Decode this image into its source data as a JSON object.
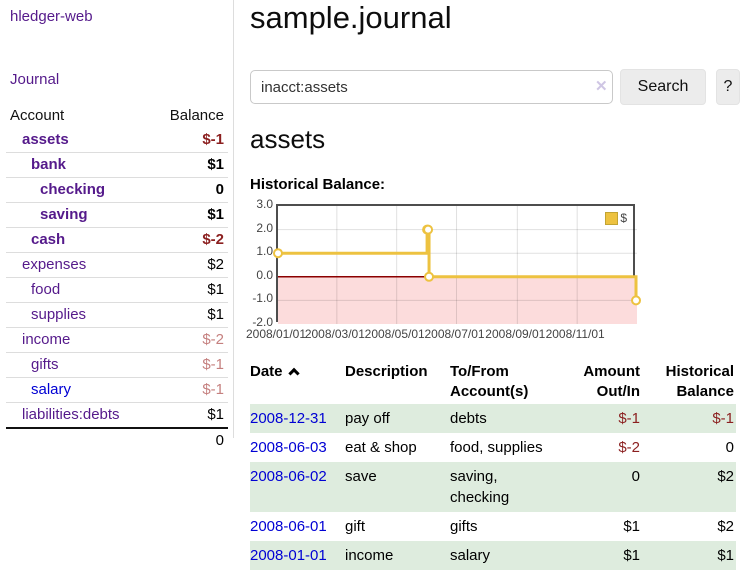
{
  "sidebar": {
    "brand": "hledger-web",
    "journal_link": "Journal",
    "table": {
      "account_header": "Account",
      "balance_header": "Balance",
      "accounts": [
        {
          "name": "assets",
          "level": 1,
          "bold": true,
          "link": "purple",
          "balance": "$-1",
          "balance_style": "neg-strong"
        },
        {
          "name": "bank",
          "level": 2,
          "bold": true,
          "link": "purple",
          "balance": "$1",
          "balance_style": "pos-strong"
        },
        {
          "name": "checking",
          "level": 3,
          "bold": true,
          "link": "purple",
          "balance": "0",
          "balance_style": "pos-strong"
        },
        {
          "name": "saving",
          "level": 3,
          "bold": true,
          "link": "purple",
          "balance": "$1",
          "balance_style": "pos-strong"
        },
        {
          "name": "cash",
          "level": 2,
          "bold": true,
          "link": "purple",
          "balance": "$-2",
          "balance_style": "neg-strong"
        },
        {
          "name": "expenses",
          "level": 1,
          "bold": false,
          "link": "purple",
          "balance": "$2",
          "balance_style": "pos"
        },
        {
          "name": "food",
          "level": 2,
          "bold": false,
          "link": "purple",
          "balance": "$1",
          "balance_style": "pos"
        },
        {
          "name": "supplies",
          "level": 2,
          "bold": false,
          "link": "purple",
          "balance": "$1",
          "balance_style": "pos"
        },
        {
          "name": "income",
          "level": 1,
          "bold": false,
          "link": "purple",
          "balance": "$-2",
          "balance_style": "neg-faded"
        },
        {
          "name": "gifts",
          "level": 2,
          "bold": false,
          "link": "purple",
          "balance": "$-1",
          "balance_style": "neg-faded"
        },
        {
          "name": "salary",
          "level": 2,
          "bold": false,
          "link": "blue",
          "balance": "$-1",
          "balance_style": "neg-faded"
        },
        {
          "name": "liabilities:debts",
          "level": 1,
          "bold": false,
          "link": "purple",
          "balance": "$1",
          "balance_style": "pos"
        }
      ],
      "total": "0"
    }
  },
  "header": {
    "title": "sample.journal"
  },
  "search": {
    "value": "inacct:assets",
    "clear_label": "✕",
    "button_label": "Search",
    "help_label": "?"
  },
  "account_page": {
    "heading": "assets",
    "chart_label": "Historical Balance:"
  },
  "chart_data": {
    "type": "line",
    "step": true,
    "title": "Historical Balance:",
    "series": [
      {
        "name": "$",
        "color": "#edc240",
        "points": [
          [
            "2008-01-01",
            1
          ],
          [
            "2008-06-01",
            2
          ],
          [
            "2008-06-02",
            2
          ],
          [
            "2008-06-03",
            0
          ],
          [
            "2008-12-31",
            -1
          ]
        ]
      }
    ],
    "x_range": [
      "2008-01-01",
      "2009-01-01"
    ],
    "ylim": [
      -2,
      3
    ],
    "y_ticks": [
      "3.0",
      "2.0",
      "1.0",
      "0.0",
      "-1.0",
      "-2.0"
    ],
    "x_ticks": [
      "2008/01/01",
      "2008/03/01",
      "2008/05/01",
      "2008/07/01",
      "2008/09/01",
      "2008/11/01"
    ],
    "grid": true,
    "legend_position": "top-right",
    "negative_fill": "#fcdcdc",
    "zero_line_color": "#8b0000"
  },
  "register": {
    "columns": [
      "Date",
      "Description",
      "To/From Account(s)",
      "Amount Out/In",
      "Historical Balance"
    ],
    "sort": {
      "column": "Date",
      "direction": "ascending"
    },
    "rows": [
      {
        "date": "2008-12-31",
        "description": "pay off",
        "accounts": "debts",
        "amount": "$-1",
        "balance": "$-1"
      },
      {
        "date": "2008-06-03",
        "description": "eat & shop",
        "accounts": "food, supplies",
        "amount": "$-2",
        "balance": "0"
      },
      {
        "date": "2008-06-02",
        "description": "save",
        "accounts": "saving, checking",
        "amount": "0",
        "balance": "$2"
      },
      {
        "date": "2008-06-01",
        "description": "gift",
        "accounts": "gifts",
        "amount": "$1",
        "balance": "$2"
      },
      {
        "date": "2008-01-01",
        "description": "income",
        "accounts": "salary",
        "amount": "$1",
        "balance": "$1"
      }
    ]
  },
  "colors": {
    "link_purple": "#551a8b",
    "link_blue": "#0000d4",
    "negative_strong": "#8b1f1f",
    "negative_faded": "#c5807f",
    "row_green": "#deecde",
    "series_yellow": "#edc240",
    "negative_area_pink": "#fcdcdc",
    "zero_line_red": "#8b0000"
  }
}
